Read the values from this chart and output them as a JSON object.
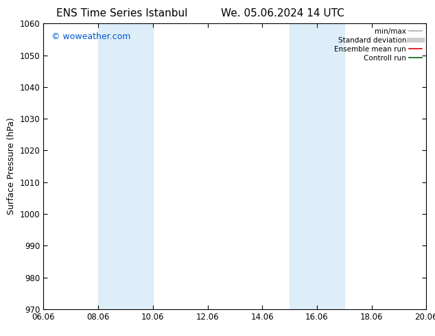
{
  "title_left": "ENS Time Series Istanbul",
  "title_right": "We. 05.06.2024 14 UTC",
  "ylabel": "Surface Pressure (hPa)",
  "ylim": [
    970,
    1060
  ],
  "yticks": [
    970,
    980,
    990,
    1000,
    1010,
    1020,
    1030,
    1040,
    1050,
    1060
  ],
  "xtick_labels": [
    "06.06",
    "08.06",
    "10.06",
    "12.06",
    "14.06",
    "16.06",
    "18.06",
    "20.06"
  ],
  "xtick_positions": [
    0,
    2,
    4,
    6,
    8,
    10,
    12,
    14
  ],
  "xlim": [
    0,
    14
  ],
  "shade_regions": [
    {
      "start": 2,
      "end": 4,
      "color": "#ddeef8"
    },
    {
      "start": 9,
      "end": 11,
      "color": "#ddeef8"
    }
  ],
  "watermark": "© woweather.com",
  "watermark_color": "#0055cc",
  "background_color": "#ffffff",
  "legend_entries": [
    {
      "label": "min/max",
      "color": "#aaaaaa",
      "linewidth": 1.2
    },
    {
      "label": "Standard deviation",
      "color": "#cccccc",
      "linewidth": 5
    },
    {
      "label": "Ensemble mean run",
      "color": "#dd0000",
      "linewidth": 1.2
    },
    {
      "label": "Controll run",
      "color": "#006600",
      "linewidth": 1.2
    }
  ],
  "title_fontsize": 11,
  "axis_label_fontsize": 9,
  "tick_fontsize": 8.5,
  "watermark_fontsize": 9
}
